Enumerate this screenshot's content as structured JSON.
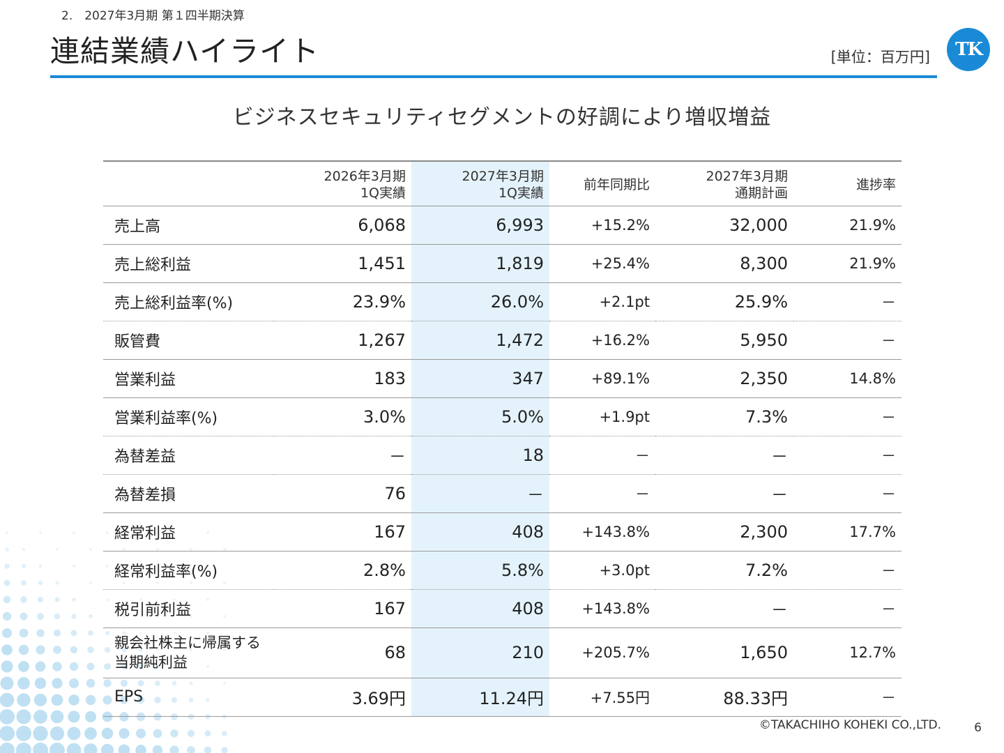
{
  "breadcrumb": "2.　2027年3月期 第１四半期決算",
  "page_title": "連結業績ハイライト",
  "unit_label": "[単位：百万円]",
  "logo_text": "TK",
  "headline": "ビジネスセキュリティセグメントの好調により増収増益",
  "colors": {
    "accent": "#1a8ad6",
    "highlight_column": "#e4f3fb"
  },
  "table": {
    "headers": [
      {
        "line1": "",
        "line2": ""
      },
      {
        "line1": "2026年3月期",
        "line2": "1Q実績"
      },
      {
        "line1": "2027年3月期",
        "line2": "1Q実績"
      },
      {
        "line1": "前年同期比",
        "line2": ""
      },
      {
        "line1": "2027年3月期",
        "line2": "通期計画"
      },
      {
        "line1": "進捗率",
        "line2": ""
      }
    ],
    "rows": [
      {
        "label": "売上高",
        "prev": "6,068",
        "curr": "6,993",
        "yoy": "+15.2%",
        "plan": "32,000",
        "progress": "21.9%"
      },
      {
        "label": "売上総利益",
        "prev": "1,451",
        "curr": "1,819",
        "yoy": "+25.4%",
        "plan": "8,300",
        "progress": "21.9%"
      },
      {
        "label": "売上総利益率(%)",
        "prev": "23.9%",
        "curr": "26.0%",
        "yoy": "+2.1pt",
        "plan": "25.9%",
        "progress": "－"
      },
      {
        "label": "販管費",
        "prev": "1,267",
        "curr": "1,472",
        "yoy": "+16.2%",
        "plan": "5,950",
        "progress": "－"
      },
      {
        "label": "営業利益",
        "prev": "183",
        "curr": "347",
        "yoy": "+89.1%",
        "plan": "2,350",
        "progress": "14.8%"
      },
      {
        "label": "営業利益率(%)",
        "prev": "3.0%",
        "curr": "5.0%",
        "yoy": "+1.9pt",
        "plan": "7.3%",
        "progress": "－"
      },
      {
        "label": "為替差益",
        "prev": "－",
        "curr": "18",
        "yoy": "－",
        "plan": "－",
        "progress": "－"
      },
      {
        "label": "為替差損",
        "prev": "76",
        "curr": "－",
        "yoy": "－",
        "plan": "－",
        "progress": "－"
      },
      {
        "label": "経常利益",
        "prev": "167",
        "curr": "408",
        "yoy": "+143.8%",
        "plan": "2,300",
        "progress": "17.7%"
      },
      {
        "label": "経常利益率(%)",
        "prev": "2.8%",
        "curr": "5.8%",
        "yoy": "+3.0pt",
        "plan": "7.2%",
        "progress": "－"
      },
      {
        "label": "税引前利益",
        "prev": "167",
        "curr": "408",
        "yoy": "+143.8%",
        "plan": "－",
        "progress": "－"
      },
      {
        "label": "親会社株主に帰属する",
        "label2": "当期純利益",
        "prev": "68",
        "curr": "210",
        "yoy": "+205.7%",
        "plan": "1,650",
        "progress": "12.7%"
      },
      {
        "label": "EPS",
        "prev": "3.69円",
        "curr": "11.24円",
        "yoy": "+7.55円",
        "plan": "88.33円",
        "progress": "－"
      }
    ]
  },
  "footer": {
    "copyright": "©TAKACHIHO KOHEKI CO.,LTD.",
    "page_number": "6"
  }
}
